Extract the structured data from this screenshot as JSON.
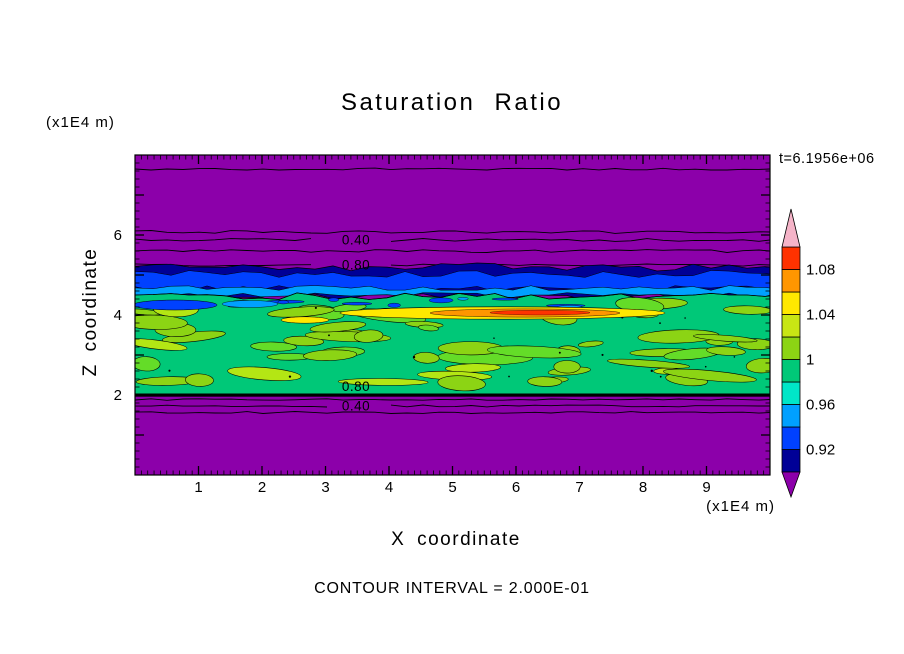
{
  "title": "Saturation Ratio",
  "annotations": {
    "time": "t=6.1956e+06",
    "contour_interval_text": "CONTOUR INTERVAL = 2.000E-01",
    "z_axis_unit": "(x1E4 m)",
    "x_axis_unit": "(x1E4 m)"
  },
  "axes": {
    "x": {
      "label": "X coordinate"
    },
    "z": {
      "label": "Z coordinate"
    }
  },
  "chart_data": {
    "type": "heatmap",
    "title": "Saturation Ratio",
    "xlabel": "X coordinate (x1E4 m)",
    "ylabel": "Z coordinate (x1E4 m)",
    "time_annotation": "t=6.1956e+06",
    "contour_interval": 0.2,
    "xlim": [
      0,
      10
    ],
    "ylim": [
      0,
      8
    ],
    "x_ticks": {
      "major": [
        1,
        2,
        3,
        4,
        5,
        6,
        7,
        8,
        9
      ],
      "labels": [
        "1",
        "2",
        "3",
        "4",
        "5",
        "6",
        "7",
        "8",
        "9"
      ],
      "minor_step": 0.1
    },
    "z_ticks": {
      "major": [
        1,
        2,
        3,
        4,
        5,
        6,
        7
      ],
      "labeled_values": [
        2,
        4,
        6
      ],
      "labels": [
        "2",
        "4",
        "6"
      ],
      "minor_step": 0.2
    },
    "colorbar": {
      "tick_labels": [
        "1.08",
        "1.04",
        "1",
        "0.96",
        "0.92"
      ],
      "tick_values": [
        1.08,
        1.04,
        1.0,
        0.96,
        0.92
      ],
      "levels": [
        0.9,
        0.92,
        0.94,
        0.96,
        0.98,
        1.0,
        1.02,
        1.04,
        1.06,
        1.08,
        1.1
      ],
      "colors": [
        "#000096",
        "#0041FF",
        "#00A0FF",
        "#00E6C8",
        "#00C878",
        "#8CD414",
        "#C8E614",
        "#FFE800",
        "#FF9600",
        "#FF3200"
      ],
      "under_color": "#8C00AA",
      "over_color": "#F5B4C8"
    },
    "contour_line_labels": [
      {
        "text": "0.40",
        "value": 0.4,
        "x_approx": 3.5,
        "z_approx": 6.0
      },
      {
        "text": "0.80",
        "value": 0.8,
        "x_approx": 3.5,
        "z_approx": 5.4
      },
      {
        "text": "0.80",
        "value": 0.8,
        "x_approx": 3.5,
        "z_approx": 2.05
      },
      {
        "text": "0.40",
        "value": 0.4,
        "x_approx": 3.5,
        "z_approx": 1.7
      }
    ],
    "field_palette": {
      "low_background": "#8C00AA",
      "transition_navy": "#000096",
      "transition_blue": "#0041FF",
      "transition_azure": "#00A0FF",
      "saturated_green": "#00C878",
      "mottle_lime": "#8CD414",
      "mottle_lime_light": "#B4E614",
      "mottle_green": "#64DC28",
      "streak_yellow": "#FFE800",
      "streak_orange": "#FF9600",
      "streak_red": "#FF3200"
    },
    "field_structure": [
      {
        "z_range": [
          5.6,
          8.0
        ],
        "description": "saturation < 0.4, uniform low value (purple background)"
      },
      {
        "z_range": [
          4.6,
          5.6
        ],
        "description": "sharp transition band ~0.8-0.92 (navy/blue/azure layers)"
      },
      {
        "z_range": [
          2.0,
          4.6
        ],
        "description": "saturated layer ~0.96-1.02, mottled green with lime patches"
      },
      {
        "z_range": [
          3.9,
          4.2
        ],
        "x_range": [
          3.2,
          8.3
        ],
        "description": "supersaturation streak ~1.04-1.10 (yellow/orange/red)"
      },
      {
        "z_range": [
          0.0,
          2.0
        ],
        "description": "saturation < 0.4 below sharp gradient (purple background)"
      }
    ]
  }
}
